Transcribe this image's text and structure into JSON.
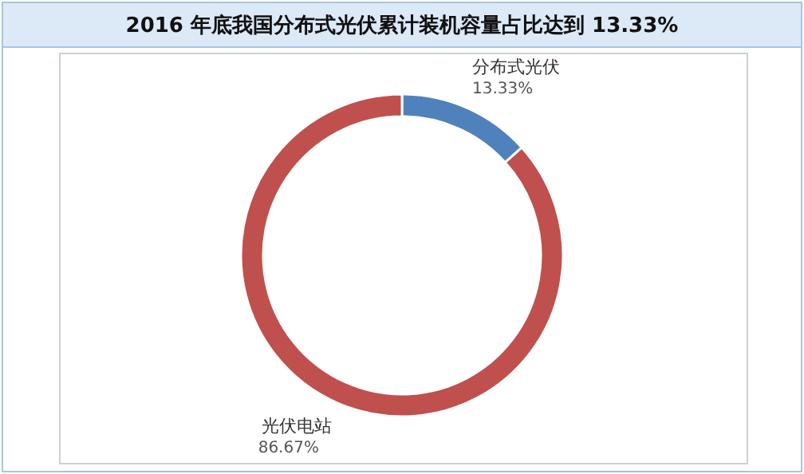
{
  "chart_data": {
    "type": "donut",
    "title": "2016 年底我国分布式光伏累计装机容量占比达到 13.33%",
    "categories": [
      "分布式光伏",
      "光伏电站"
    ],
    "values": [
      13.33,
      86.67
    ],
    "colors": [
      "#4f81bd",
      "#c0504d"
    ],
    "value_labels": [
      "13.33%",
      "86.67%"
    ]
  }
}
